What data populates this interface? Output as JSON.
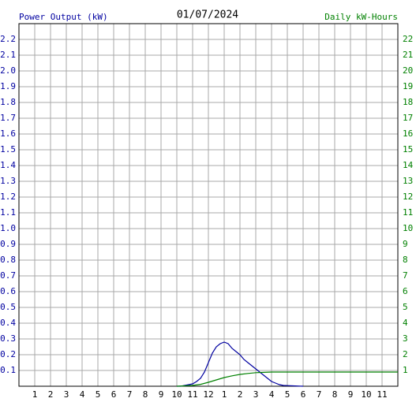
{
  "chart_data": {
    "type": "line",
    "title": "01/07/2024",
    "y_label": "Power Output (kW)",
    "y2_label": "Daily kW-Hours",
    "xlim": [
      0,
      24
    ],
    "xticks": [
      1,
      2,
      3,
      4,
      5,
      6,
      7,
      8,
      9,
      10,
      11,
      12,
      {
        "value": 13,
        "label": "1"
      },
      {
        "value": 14,
        "label": "2"
      },
      {
        "value": 15,
        "label": "3"
      },
      {
        "value": 16,
        "label": "4"
      },
      {
        "value": 17,
        "label": "5"
      },
      {
        "value": 18,
        "label": "6"
      },
      {
        "value": 19,
        "label": "7"
      },
      {
        "value": 20,
        "label": "8"
      },
      {
        "value": 21,
        "label": "9"
      },
      {
        "value": 22,
        "label": "10"
      },
      {
        "value": 23,
        "label": "11"
      }
    ],
    "ylim": [
      0,
      2.3
    ],
    "yticks": [
      0.1,
      0.2,
      0.3,
      0.4,
      0.5,
      0.6,
      0.7,
      0.8,
      0.9,
      {
        "value": 1,
        "label": "1.0"
      },
      1.1,
      1.2,
      1.3,
      1.4,
      1.5,
      1.6,
      1.7,
      1.8,
      1.9,
      {
        "value": 2,
        "label": "2.0"
      },
      2.1,
      2.2
    ],
    "y2lim": [
      0,
      23
    ],
    "y2ticks": [
      1,
      2,
      3,
      4,
      5,
      6,
      7,
      8,
      9,
      10,
      11,
      12,
      13,
      14,
      15,
      16,
      17,
      18,
      19,
      20,
      21,
      22
    ],
    "grid": true,
    "series": [
      {
        "name": "Power Output (kW)",
        "color": "#0000a0",
        "x": [
          10,
          10.25,
          10.5,
          10.75,
          11,
          11.25,
          11.5,
          11.75,
          12,
          12.25,
          12.5,
          12.75,
          13,
          13.25,
          13.5,
          13.75,
          14,
          14.25,
          14.5,
          14.75,
          15,
          15.25,
          15.5,
          15.75,
          16,
          16.25,
          16.5,
          16.75,
          17,
          17.5,
          18
        ],
        "values": [
          0,
          0,
          0.005,
          0.01,
          0.015,
          0.03,
          0.05,
          0.09,
          0.15,
          0.21,
          0.25,
          0.27,
          0.28,
          0.27,
          0.24,
          0.22,
          0.2,
          0.17,
          0.15,
          0.13,
          0.11,
          0.09,
          0.07,
          0.05,
          0.03,
          0.02,
          0.01,
          0.005,
          0.004,
          0.002,
          0
        ]
      },
      {
        "name": "Daily kW-Hours",
        "color": "#008000",
        "axis": "y2",
        "x": [
          10,
          11,
          11.5,
          12,
          12.5,
          13,
          13.5,
          14,
          14.5,
          15,
          15.5,
          16,
          17,
          24
        ],
        "values": [
          0,
          0.05,
          0.12,
          0.25,
          0.4,
          0.55,
          0.66,
          0.75,
          0.81,
          0.86,
          0.88,
          0.9,
          0.9,
          0.9
        ]
      }
    ]
  }
}
